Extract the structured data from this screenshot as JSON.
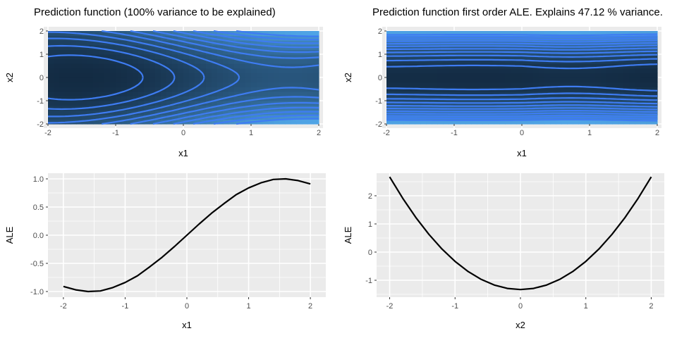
{
  "chart_data": [
    {
      "id": "p1",
      "type": "heatmap",
      "title": "Prediction function (100% variance to be explained)",
      "xlabel": "x1",
      "ylabel": "x2",
      "xlim": [
        -2,
        2
      ],
      "ylim": [
        -2,
        2
      ],
      "xticks": [
        "-2",
        "-1",
        "0",
        "1",
        "2"
      ],
      "yticks": [
        "2",
        "1",
        "0",
        "-1",
        "-2"
      ],
      "fill_low_color": "#132b43",
      "fill_high_color": "#56b1f7",
      "contour_color": "#3e7cf2",
      "legend": "none"
    },
    {
      "id": "p2",
      "type": "heatmap",
      "title": "Prediction function first order ALE. Explains 47.12 % variance.",
      "xlabel": "x1",
      "ylabel": "x2",
      "xlim": [
        -2,
        2
      ],
      "ylim": [
        -2,
        2
      ],
      "xticks": [
        "-2",
        "-1",
        "0",
        "1",
        "2"
      ],
      "yticks": [
        "2",
        "1",
        "0",
        "-1",
        "-2"
      ],
      "fill_low_color": "#132b43",
      "fill_high_color": "#56b1f7",
      "contour_color": "#3e7cf2",
      "legend": "none"
    },
    {
      "id": "p3",
      "type": "line",
      "title": "",
      "xlabel": "x1",
      "ylabel": "ALE",
      "xlim": [
        -2.25,
        2.25
      ],
      "ylim": [
        -1.1,
        1.1
      ],
      "xticks": [
        "-2",
        "-1",
        "0",
        "1",
        "2"
      ],
      "yticks": [
        "1.0",
        "0.5",
        "0.0",
        "-0.5",
        "-1.0"
      ],
      "x": [
        -2.0,
        -1.8,
        -1.6,
        -1.4,
        -1.2,
        -1.0,
        -0.8,
        -0.6,
        -0.4,
        -0.2,
        0.0,
        0.2,
        0.4,
        0.6,
        0.8,
        1.0,
        1.2,
        1.4,
        1.6,
        1.8,
        2.0
      ],
      "y": [
        -0.91,
        -0.97,
        -1.0,
        -0.99,
        -0.93,
        -0.84,
        -0.72,
        -0.56,
        -0.39,
        -0.2,
        0.0,
        0.2,
        0.39,
        0.56,
        0.72,
        0.84,
        0.93,
        0.99,
        1.0,
        0.97,
        0.91
      ],
      "line_color": "#000000",
      "grid": true
    },
    {
      "id": "p4",
      "type": "line",
      "title": "",
      "xlabel": "x2",
      "ylabel": "ALE",
      "xlim": [
        -2.2,
        2.2
      ],
      "ylim": [
        -1.6,
        2.8
      ],
      "xticks": [
        "-2",
        "-1",
        "0",
        "1",
        "2"
      ],
      "yticks": [
        "2",
        "1",
        "0",
        "-1"
      ],
      "x": [
        -2.0,
        -1.8,
        -1.6,
        -1.4,
        -1.2,
        -1.0,
        -0.8,
        -0.6,
        -0.4,
        -0.2,
        0.0,
        0.2,
        0.4,
        0.6,
        0.8,
        1.0,
        1.2,
        1.4,
        1.6,
        1.8,
        2.0
      ],
      "y": [
        2.67,
        1.91,
        1.23,
        0.63,
        0.11,
        -0.33,
        -0.69,
        -0.97,
        -1.17,
        -1.29,
        -1.33,
        -1.29,
        -1.17,
        -0.97,
        -0.69,
        -0.33,
        0.11,
        0.63,
        1.23,
        1.91,
        2.67
      ],
      "line_color": "#000000",
      "grid": true
    }
  ]
}
